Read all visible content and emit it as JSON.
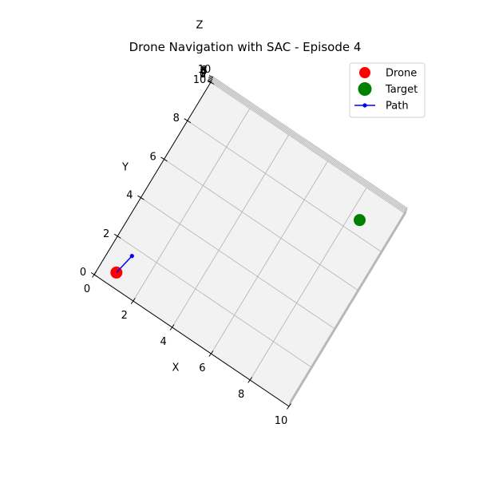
{
  "chart_data": {
    "type": "scatter",
    "projection": "3d",
    "title": "Drone Navigation with SAC - Episode 4",
    "xlabel": "X",
    "ylabel": "Y",
    "zlabel": "Z",
    "xlim": [
      0,
      10
    ],
    "ylim": [
      0,
      10
    ],
    "zlim": [
      0,
      10
    ],
    "x_ticks": [
      "0",
      "2",
      "4",
      "6",
      "8",
      "10"
    ],
    "y_ticks": [
      "0",
      "2",
      "4",
      "6",
      "8",
      "10"
    ],
    "z_ticks": [
      "0",
      "2",
      "4",
      "6",
      "8",
      "10"
    ],
    "grid": true,
    "legend_position": "top-right",
    "series": [
      {
        "name": "Drone",
        "marker": "circle",
        "color": "#ff0000",
        "points": [
          {
            "x": 0.8,
            "y": 0.5,
            "z": 5.0
          }
        ]
      },
      {
        "name": "Target",
        "marker": "circle",
        "color": "#008000",
        "points": [
          {
            "x": 8.5,
            "y": 8.5,
            "z": 5.0
          }
        ]
      },
      {
        "name": "Path",
        "marker": "line-dot",
        "color": "#0000ff",
        "points": [
          {
            "x": 0.8,
            "y": 0.5,
            "z": 5.0
          },
          {
            "x": 1.0,
            "y": 1.5,
            "z": 5.0
          }
        ]
      }
    ]
  }
}
